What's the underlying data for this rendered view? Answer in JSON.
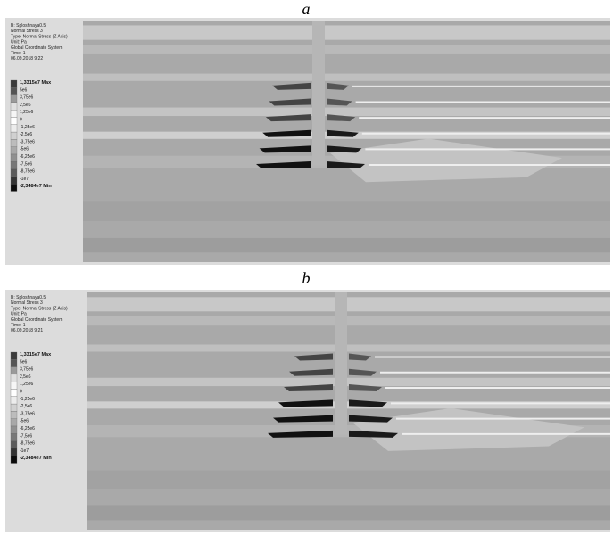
{
  "panels": [
    {
      "label": "a",
      "header": [
        "B: Sploshnaya0.5",
        "Normal Stress 3",
        "Type: Normal Stress (Z Axis)",
        "Unit: Pa",
        "Global Coordinate System",
        "Time: 1",
        "06.09.2018 9:22"
      ],
      "legend": [
        "1,3315e7 Max",
        "5e6",
        "3,75e6",
        "2,5e6",
        "1,25e6",
        "0",
        "-1,25e6",
        "-2,5e6",
        "-3,75e6",
        "-5e6",
        "-6,25e6",
        "-7,5e6",
        "-8,75e6",
        "-1e7",
        "-2,3484e7 Min"
      ]
    },
    {
      "label": "b",
      "header": [
        "B: Sploshnaya0.5",
        "Normal Stress 3",
        "Type: Normal Stress (Z Axis)",
        "Unit: Pa",
        "Global Coordinate System",
        "Time: 1",
        "06.09.2018 9:21"
      ],
      "legend": [
        "1,3315e7 Max",
        "5e6",
        "3,75e6",
        "2,5e6",
        "1,25e6",
        "0",
        "-1,25e6",
        "-2,5e6",
        "-3,75e6",
        "-5e6",
        "-6,25e6",
        "-7,5e6",
        "-8,75e6",
        "-1e7",
        "-2,3484e7 Min"
      ]
    }
  ]
}
